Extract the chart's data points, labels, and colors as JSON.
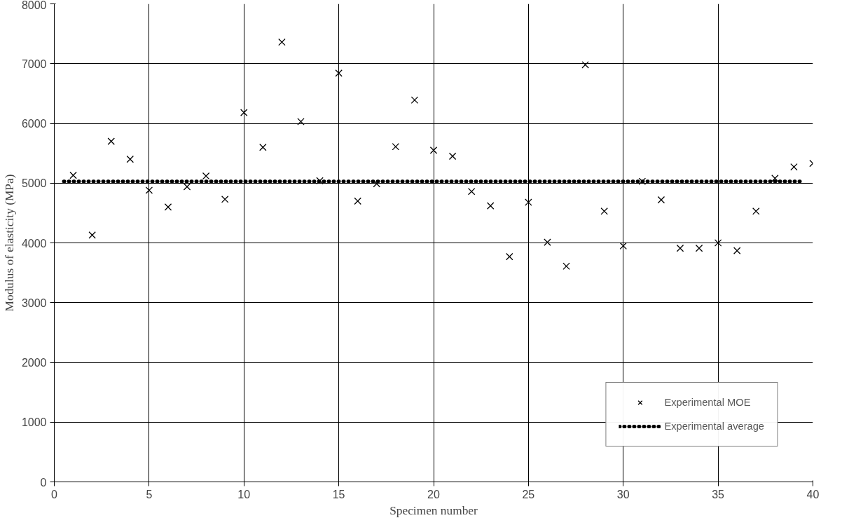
{
  "chart_data": {
    "type": "scatter",
    "xlabel": "Specimen number",
    "ylabel": "Modulus of elasticity (MPa)",
    "xlim": [
      0,
      40
    ],
    "xticks": [
      0,
      5,
      10,
      15,
      20,
      25,
      30,
      35,
      40
    ],
    "ylim": [
      0,
      8000
    ],
    "yticks": [
      0,
      1000,
      2000,
      3000,
      4000,
      5000,
      6000,
      7000,
      8000
    ],
    "grid": true,
    "legend": "bottom right",
    "series": [
      {
        "name": "Experimental MOE",
        "marker": "cross",
        "color": "#000000",
        "x": [
          1,
          2,
          3,
          4,
          5,
          6,
          7,
          8,
          9,
          10,
          11,
          12,
          13,
          14,
          15,
          16,
          17,
          18,
          19,
          20,
          21,
          22,
          23,
          24,
          25,
          26,
          27,
          28,
          29,
          30,
          31,
          32,
          33,
          34,
          35,
          36,
          37,
          38,
          39,
          40
        ],
        "values": [
          5130,
          4130,
          5700,
          5400,
          4880,
          4600,
          4940,
          5120,
          4730,
          6180,
          5600,
          7360,
          6030,
          5040,
          6840,
          4700,
          4990,
          5610,
          6390,
          5550,
          5450,
          4860,
          4620,
          3770,
          4680,
          4010,
          3610,
          6980,
          4530,
          3950,
          5030,
          4720,
          3910,
          3910,
          4000,
          3870,
          4530,
          5080,
          5270,
          5330
        ]
      },
      {
        "name": "Experimental average",
        "type": "line",
        "line_style": "dotted",
        "color": "#000000",
        "x": [
          0.5,
          39.5
        ],
        "values": [
          5030,
          5030
        ]
      }
    ]
  }
}
